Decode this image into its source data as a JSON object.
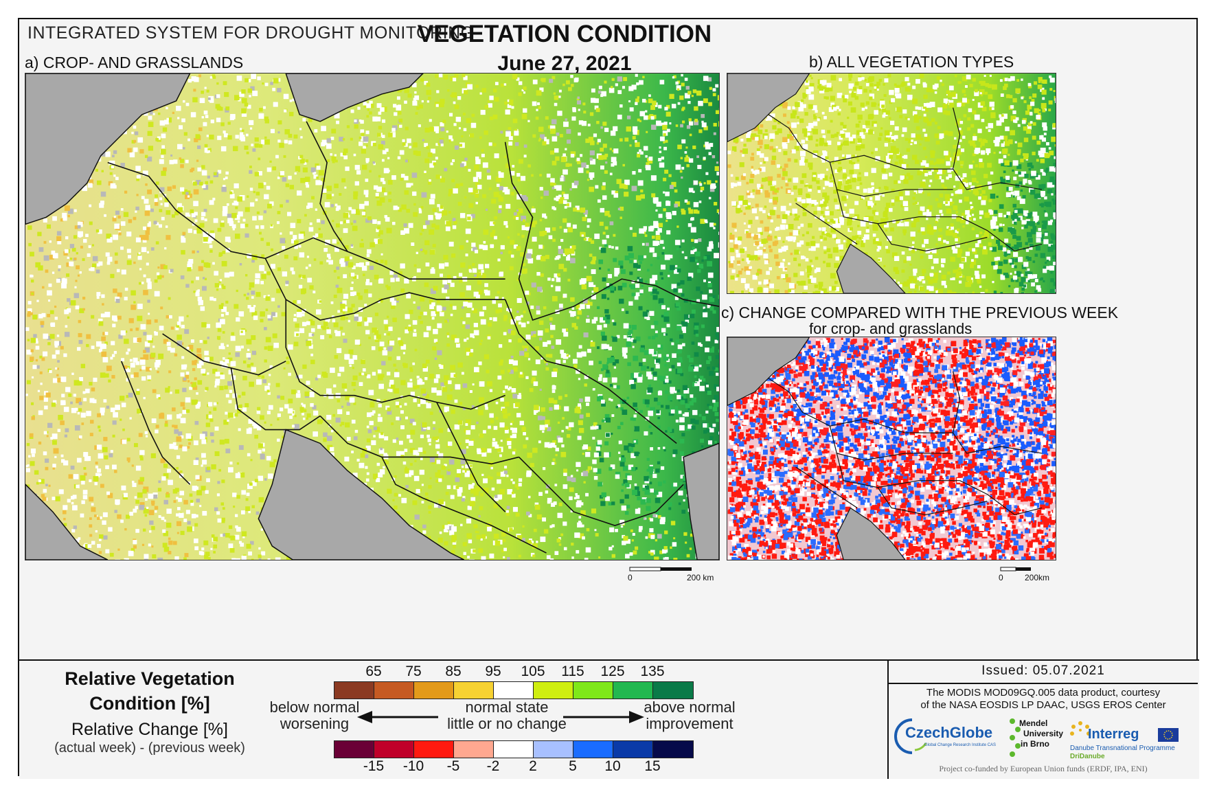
{
  "header": {
    "system_name": "INTEGRATED SYSTEM FOR DROUGHT MONITORING",
    "title": "VEGETATION CONDITION",
    "date": "June 27, 2021"
  },
  "panels": {
    "a_label": "a) CROP- AND GRASSLANDS",
    "b_label": "b) ALL VEGETATION TYPES",
    "c_label": "c) CHANGE COMPARED WITH THE PREVIOUS WEEK",
    "c_sublabel": "for crop- and grasslands"
  },
  "scalebars": {
    "main_zero": "0",
    "main_end": "200 km",
    "small_zero": "0",
    "small_end": "200km"
  },
  "legend": {
    "rvc_title_line1": "Relative Vegetation",
    "rvc_title_line2": "Condition [%]",
    "rc_title": "Relative Change [%]",
    "rc_subtitle": "(actual week) - (previous week)",
    "rvc_ticks": [
      "65",
      "75",
      "85",
      "95",
      "105",
      "115",
      "125",
      "135"
    ],
    "rvc_colors": [
      "#8b3a22",
      "#c65a22",
      "#e39a1a",
      "#f7d232",
      "#ffffff",
      "#cfee10",
      "#7fe81a",
      "#22b850",
      "#0a7a48"
    ],
    "rc_ticks": [
      "-15",
      "-10",
      "-5",
      "-2",
      "2",
      "5",
      "10",
      "15"
    ],
    "rc_colors": [
      "#6a0036",
      "#c0002a",
      "#ff1a10",
      "#ffa890",
      "#ffffff",
      "#a8c0ff",
      "#1a6cff",
      "#0a3aa8",
      "#060a4a"
    ],
    "left_text_1": "below normal",
    "left_text_2": "worsening",
    "center_text_1": "normal state",
    "center_text_2": "little or no change",
    "right_text_1": "above normal",
    "right_text_2": "improvement"
  },
  "info": {
    "issued": "Issued: 05.07.2021",
    "credit_1": "The MODIS MOD09GQ.005 data product, courtesy",
    "credit_2": "of the NASA EOSDIS LP DAAC, USGS EROS Center",
    "czechglobe": "CzechGlobe",
    "czechglobe_sub": "Global Change Research Institute CAS",
    "mendel_1": "Mendel",
    "mendel_2": "University",
    "mendel_3": "in Brno",
    "interreg": "Interreg",
    "interreg_sub": "Danube Transnational Programme",
    "dridanube": "DriDanube",
    "cofunded": "Project co-funded by European Union funds (ERDF, IPA, ENI)"
  }
}
